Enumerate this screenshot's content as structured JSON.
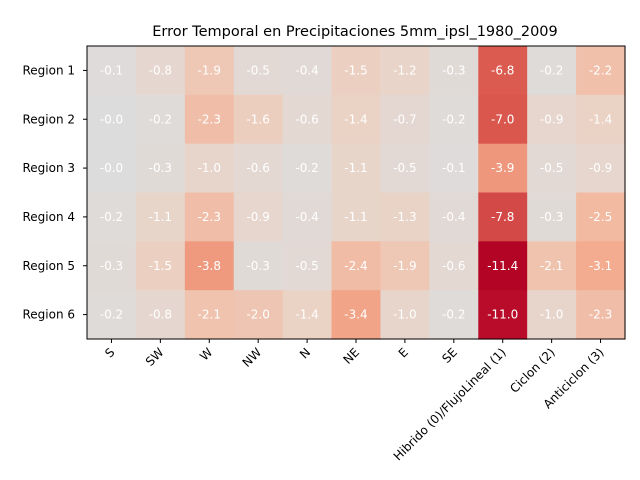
{
  "chart_data": {
    "type": "heatmap",
    "title": "Error Temporal en Precipitaciones 5mm_ipsl_1980_2009",
    "xlabel": "",
    "ylabel": "",
    "x_categories": [
      "S",
      "SW",
      "W",
      "NW",
      "N",
      "NE",
      "E",
      "SE",
      "Hibrido (0)/FlujoLineal (1)",
      "Ciclon (2)",
      "Anticiclon (3)"
    ],
    "y_categories": [
      "Region 1",
      "Region 2",
      "Region 3",
      "Region 4",
      "Region 5",
      "Region 6"
    ],
    "values": [
      [
        -0.1,
        -0.8,
        -1.9,
        -0.5,
        -0.4,
        -1.5,
        -1.2,
        -0.3,
        -6.8,
        -0.2,
        -2.2
      ],
      [
        -0.0,
        -0.2,
        -2.3,
        -1.6,
        -0.6,
        -1.4,
        -0.7,
        -0.2,
        -7.0,
        -0.9,
        -1.4
      ],
      [
        -0.0,
        -0.3,
        -1.0,
        -0.6,
        -0.2,
        -1.1,
        -0.5,
        -0.1,
        -3.9,
        -0.5,
        -0.9
      ],
      [
        -0.2,
        -1.1,
        -2.3,
        -0.9,
        -0.4,
        -1.1,
        -1.3,
        -0.4,
        -7.8,
        -0.3,
        -2.5
      ],
      [
        -0.3,
        -1.5,
        -3.8,
        -0.3,
        -0.5,
        -2.4,
        -1.9,
        -0.6,
        -11.4,
        -2.1,
        -3.1
      ],
      [
        -0.2,
        -0.8,
        -2.1,
        -2.0,
        -1.4,
        -3.4,
        -1.0,
        -0.2,
        -11.0,
        -1.0,
        -2.3
      ]
    ],
    "colormap": "coolwarm (reversed, centered at 0)",
    "grid": false,
    "legend": "none"
  }
}
